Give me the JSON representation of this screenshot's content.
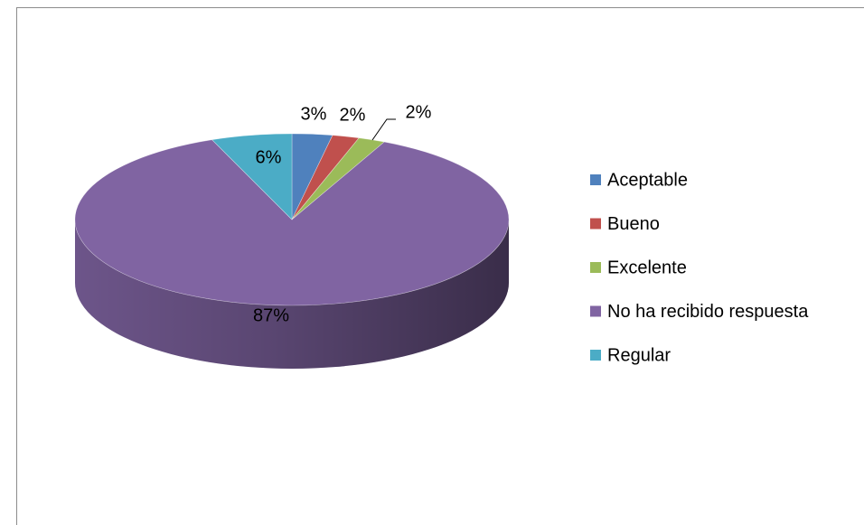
{
  "chart_data": {
    "type": "pie",
    "categories": [
      "Aceptable",
      "Bueno",
      "Excelente",
      "No ha recibido respuesta",
      "Regular"
    ],
    "values": [
      3,
      2,
      2,
      87,
      6
    ],
    "value_labels": [
      "3%",
      "2%",
      "2%",
      "87%",
      "6%"
    ],
    "colors": [
      "#4f81bd",
      "#c0504d",
      "#9bbb59",
      "#8064a2",
      "#4bacc6"
    ],
    "legend": "right"
  }
}
